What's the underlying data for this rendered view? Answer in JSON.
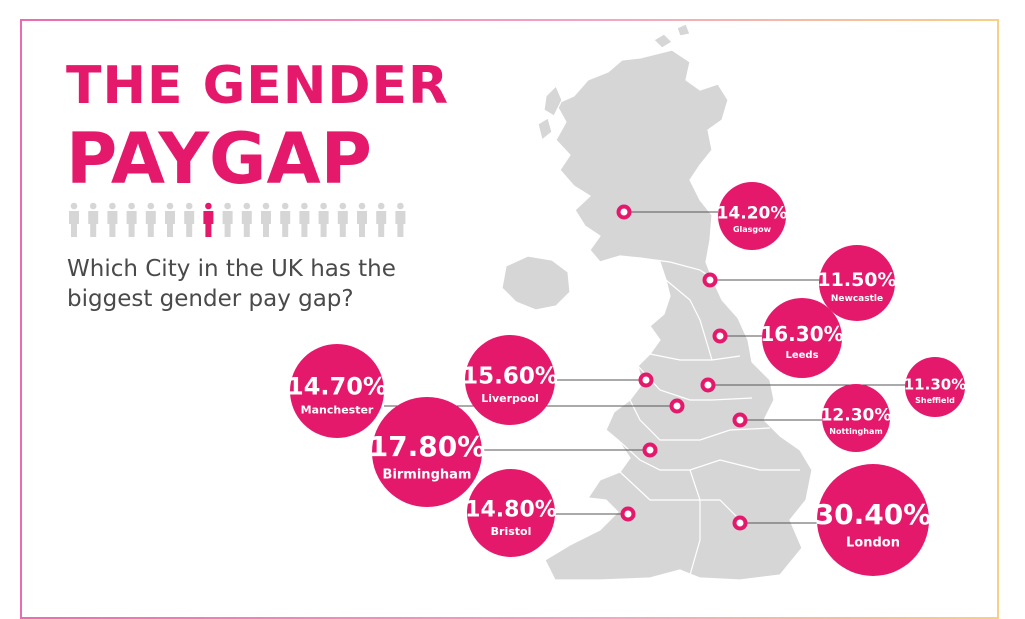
{
  "header": {
    "title_line1": "THE GENDER",
    "title_line2": "PAYGAP",
    "question_line1": "Which City in the UK has the",
    "question_line2": "biggest gender pay gap?"
  },
  "icons": {
    "figures": "person-row-icon",
    "map": "uk-map-icon"
  },
  "colors": {
    "accent": "#e5196c",
    "map": "#d6d6d6",
    "text": "#4a4a4a"
  },
  "chart_data": {
    "type": "bubble-map",
    "series": [
      {
        "city": "Glasgow",
        "value": 14.2,
        "label": "14.20%"
      },
      {
        "city": "Newcastle",
        "value": 11.5,
        "label": "11.50%"
      },
      {
        "city": "Leeds",
        "value": 16.3,
        "label": "16.30%"
      },
      {
        "city": "Sheffield",
        "value": 11.3,
        "label": "11.30%"
      },
      {
        "city": "Nottingham",
        "value": 12.3,
        "label": "12.30%"
      },
      {
        "city": "Liverpool",
        "value": 15.6,
        "label": "15.60%"
      },
      {
        "city": "Manchester",
        "value": 14.7,
        "label": "14.70%"
      },
      {
        "city": "Birmingham",
        "value": 17.8,
        "label": "17.80%"
      },
      {
        "city": "Bristol",
        "value": 14.8,
        "label": "14.80%"
      },
      {
        "city": "London",
        "value": 30.4,
        "label": "30.40%"
      }
    ]
  }
}
